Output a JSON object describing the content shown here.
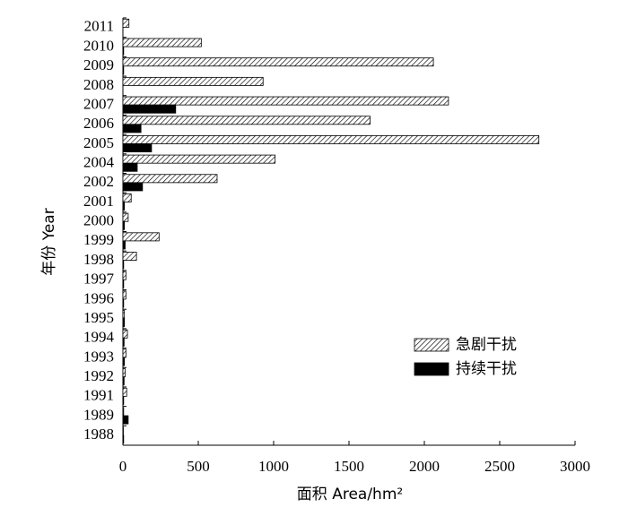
{
  "chart_data": {
    "type": "bar",
    "orientation": "horizontal",
    "x_label": "面积 Area/hm²",
    "y_label": "年份 Year",
    "categories": [
      "1988",
      "1989",
      "1991",
      "1992",
      "1993",
      "1994",
      "1995",
      "1996",
      "1997",
      "1998",
      "1999",
      "2000",
      "2001",
      "2002",
      "2004",
      "2005",
      "2006",
      "2007",
      "2008",
      "2009",
      "2010",
      "2011"
    ],
    "series": [
      {
        "name": "急剧干扰",
        "color": "#000000",
        "pattern": "hatch",
        "values": [
          3,
          5,
          25,
          15,
          20,
          30,
          10,
          20,
          20,
          90,
          240,
          35,
          55,
          625,
          1010,
          2760,
          1640,
          2160,
          930,
          2060,
          520,
          40
        ]
      },
      {
        "name": "持续干扰",
        "color": "#000000",
        "pattern": "solid",
        "values": [
          5,
          35,
          5,
          8,
          10,
          8,
          10,
          5,
          5,
          5,
          15,
          10,
          10,
          130,
          95,
          190,
          120,
          350,
          0,
          5,
          5,
          0
        ]
      }
    ],
    "xlim": [
      0,
      3000
    ],
    "xticks": [
      0,
      500,
      1000,
      1500,
      2000,
      2500,
      3000
    ],
    "legend": "lower-right"
  }
}
